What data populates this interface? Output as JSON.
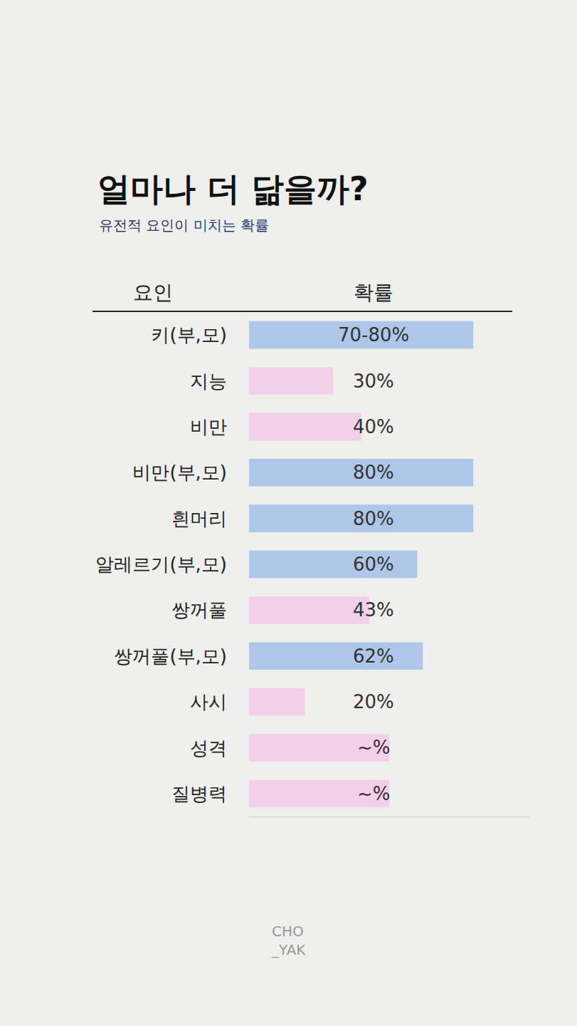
{
  "chart_data": {
    "type": "bar",
    "title": "얼마나 더 닮을까?",
    "subtitle": "유전적 요인이 미치는 확률",
    "ylabel": "요인",
    "xlabel": "확률",
    "orientation": "horizontal",
    "categories": [
      "키(부,모)",
      "지능",
      "비만",
      "비만(부,모)",
      "흰머리",
      "알레르기(부,모)",
      "쌍꺼풀",
      "쌍꺼풀(부,모)",
      "사시",
      "성격",
      "질병력"
    ],
    "values": [
      80,
      30,
      40,
      80,
      80,
      60,
      43,
      62,
      20,
      50,
      50
    ],
    "value_labels": [
      "70-80%",
      "30%",
      "40%",
      "80%",
      "80%",
      "60%",
      "43%",
      "62%",
      "20%",
      "~%",
      "~%"
    ],
    "colors": [
      "#aec6e8",
      "#f2d0e8",
      "#f2d0e8",
      "#aec6e8",
      "#aec6e8",
      "#aec6e8",
      "#f2d0e8",
      "#aec6e8",
      "#f2d0e8",
      "#f2d0e8",
      "#f2d0e8"
    ],
    "xlim": [
      0,
      100
    ],
    "xticks": [],
    "grid": false,
    "data_labels": true,
    "tick_labels": "y",
    "footer": [
      "CHO",
      "_YAK"
    ]
  }
}
